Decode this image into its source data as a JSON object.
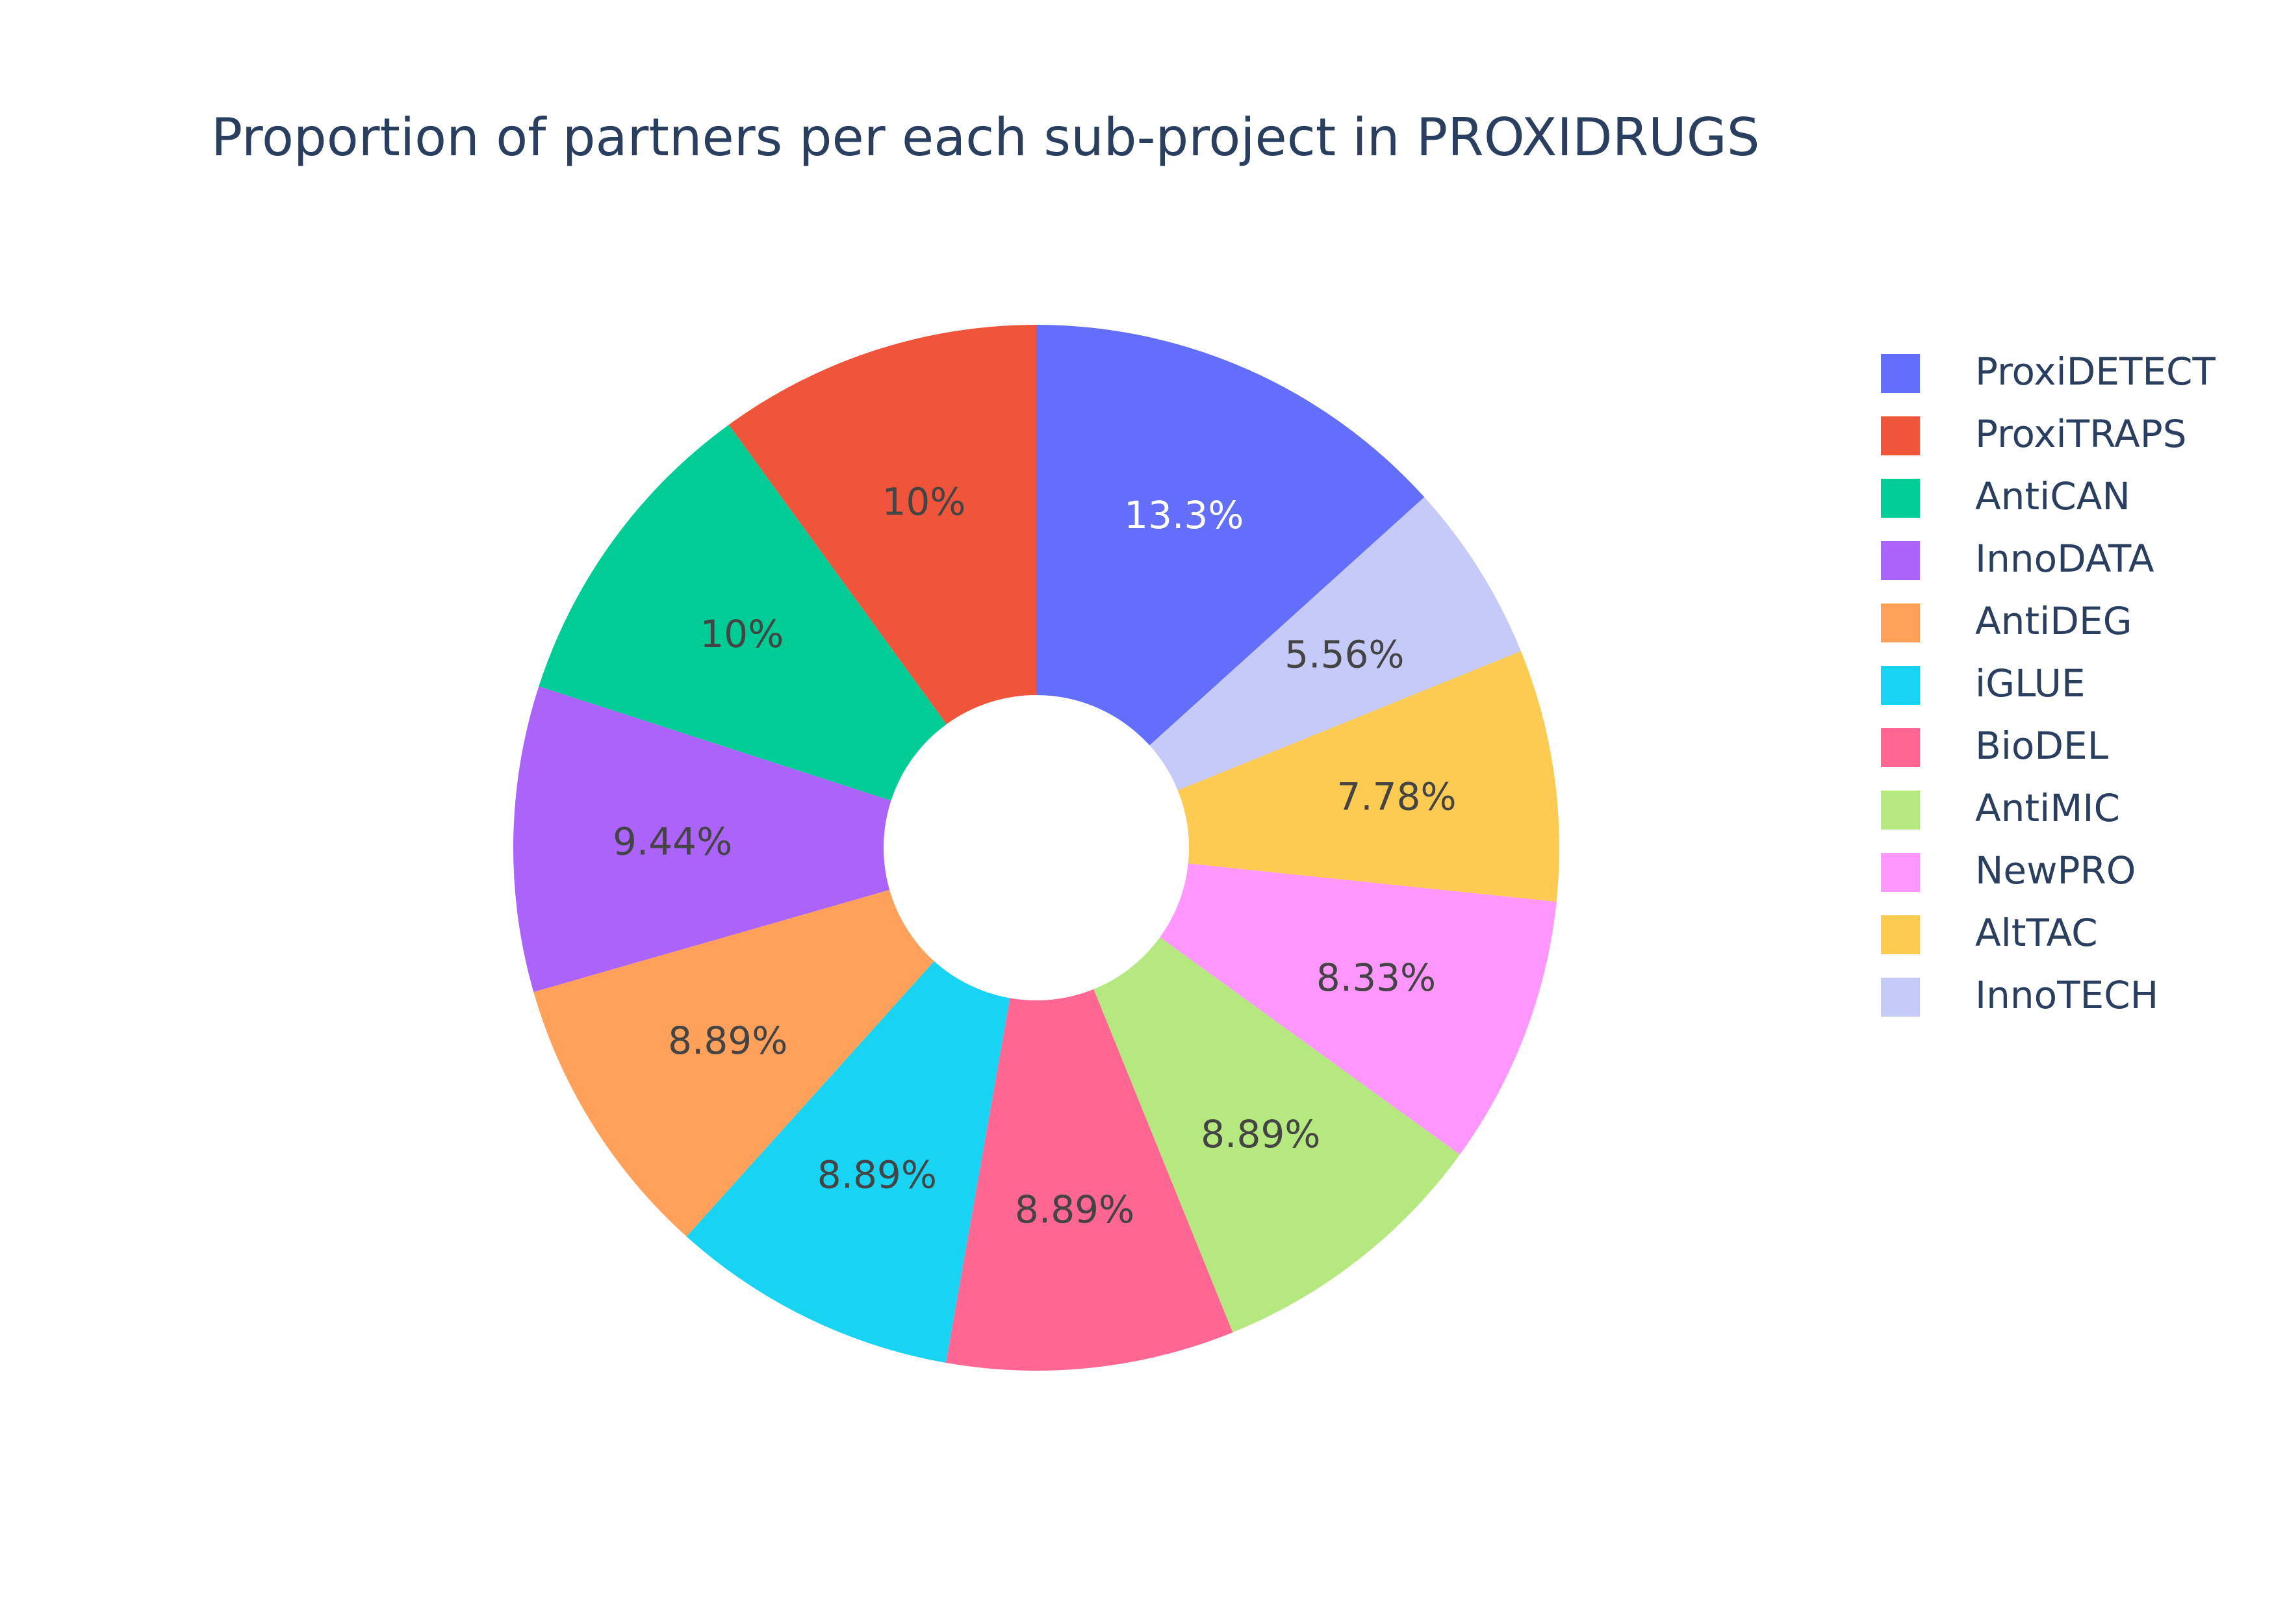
{
  "chart_data": {
    "type": "pie",
    "hole": true,
    "title": "Proportion of partners per each sub-project in PROXIDRUGS",
    "legend_position": "right",
    "slices": [
      {
        "name": "ProxiDETECT",
        "value": 13.3,
        "label": "13.3%",
        "color": "#636efa",
        "label_color": "#ffffff"
      },
      {
        "name": "InnoTECH",
        "value": 5.56,
        "label": "5.56%",
        "color": "#c6caf9",
        "label_color": "#444444"
      },
      {
        "name": "AltTAC",
        "value": 7.78,
        "label": "7.78%",
        "color": "#fecb52",
        "label_color": "#444444"
      },
      {
        "name": "NewPRO",
        "value": 8.33,
        "label": "8.33%",
        "color": "#ff97ff",
        "label_color": "#444444"
      },
      {
        "name": "AntiMIC",
        "value": 8.89,
        "label": "8.89%",
        "color": "#b6e880",
        "label_color": "#444444"
      },
      {
        "name": "BioDEL",
        "value": 8.89,
        "label": "8.89%",
        "color": "#ff6692",
        "label_color": "#444444"
      },
      {
        "name": "iGLUE",
        "value": 8.89,
        "label": "8.89%",
        "color": "#19d3f3",
        "label_color": "#444444"
      },
      {
        "name": "AntiDEG",
        "value": 8.89,
        "label": "8.89%",
        "color": "#ffa15a",
        "label_color": "#444444"
      },
      {
        "name": "InnoDATA",
        "value": 9.44,
        "label": "9.44%",
        "color": "#ab63fa",
        "label_color": "#444444"
      },
      {
        "name": "AntiCAN",
        "value": 10,
        "label": "10%",
        "color": "#00cc96",
        "label_color": "#444444"
      },
      {
        "name": "ProxiTRAPS",
        "value": 10,
        "label": "10%",
        "color": "#ef553b",
        "label_color": "#444444"
      }
    ],
    "legend": [
      {
        "name": "ProxiDETECT",
        "color": "#636efa"
      },
      {
        "name": "ProxiTRAPS",
        "color": "#ef553b"
      },
      {
        "name": "AntiCAN",
        "color": "#00cc96"
      },
      {
        "name": "InnoDATA",
        "color": "#ab63fa"
      },
      {
        "name": "AntiDEG",
        "color": "#ffa15a"
      },
      {
        "name": "iGLUE",
        "color": "#19d3f3"
      },
      {
        "name": "BioDEL",
        "color": "#ff6692"
      },
      {
        "name": "AntiMIC",
        "color": "#b6e880"
      },
      {
        "name": "NewPRO",
        "color": "#ff97ff"
      },
      {
        "name": "AltTAC",
        "color": "#fecb52"
      },
      {
        "name": "InnoTECH",
        "color": "#c6caf9"
      }
    ]
  }
}
